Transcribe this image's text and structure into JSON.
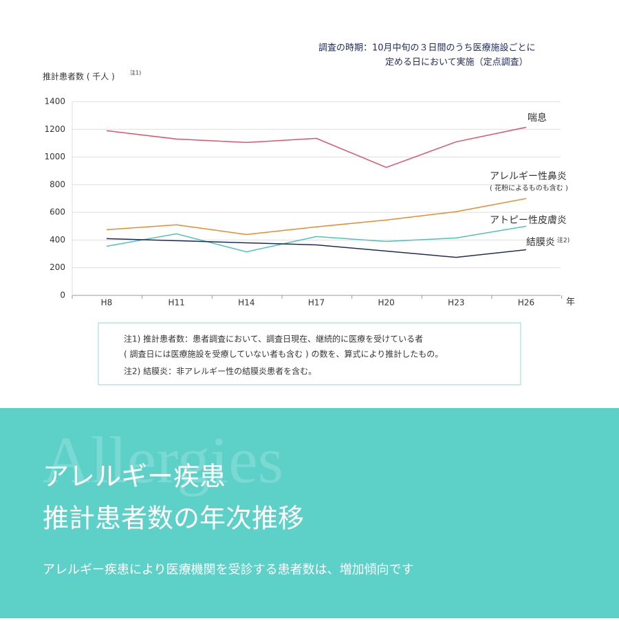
{
  "survey_note": [
    "調査の時期：10月中旬の３日間のうち医療施設ごとに",
    "定める日において実施（定点調査）"
  ],
  "chart_data": {
    "type": "line",
    "ylabel": "推計患者数 ( 千人 )",
    "ylabel_note": "注1)",
    "xlabel": "年",
    "categories": [
      "H8",
      "H11",
      "H14",
      "H17",
      "H20",
      "H23",
      "H26"
    ],
    "ylim": [
      0,
      1400
    ],
    "yticks": [
      0,
      200,
      400,
      600,
      800,
      1000,
      1200,
      1400
    ],
    "grid": true,
    "series": [
      {
        "name": "喘息",
        "color": "#e0536e",
        "values": [
          1190,
          1130,
          1105,
          1135,
          925,
          1110,
          1215
        ]
      },
      {
        "name": "アレルギー性鼻炎",
        "sublabel": "( 花粉によるものも含む )",
        "color": "#e88a2e",
        "values": [
          475,
          510,
          440,
          495,
          545,
          605,
          700
        ]
      },
      {
        "name": "アトピー性皮膚炎",
        "color": "#4cc3bb",
        "values": [
          355,
          445,
          315,
          425,
          390,
          415,
          500
        ]
      },
      {
        "name": "結膜炎",
        "note": "注2)",
        "color": "#1d2a5e",
        "values": [
          410,
          395,
          380,
          365,
          320,
          275,
          330
        ]
      }
    ]
  },
  "notes": [
    "注1) 推計患者数：患者調査において、調査日現在、継続的に医療を受けている者",
    "( 調査日には医療施設を受療していない者も含む ) の数を、算式により推計したもの。",
    "注2) 結膜炎：非アレルギー性の結膜炎患者を含む。"
  ],
  "banner": {
    "background_word": "Allergies",
    "title": [
      "アレルギー疾患",
      "推計患者数の年次推移"
    ],
    "subtitle": "アレルギー疾患により医療機関を受診する患者数は、増加傾向です"
  }
}
